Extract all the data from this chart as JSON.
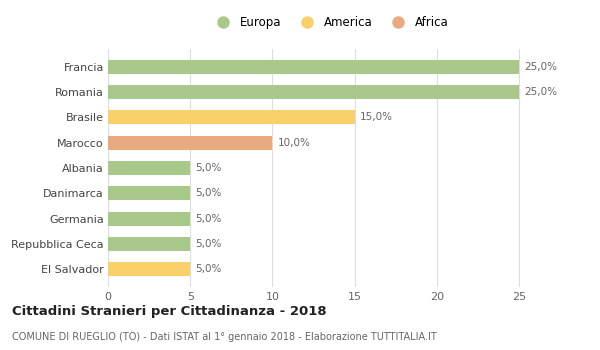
{
  "categories": [
    "El Salvador",
    "Repubblica Ceca",
    "Germania",
    "Danimarca",
    "Albania",
    "Marocco",
    "Brasile",
    "Romania",
    "Francia"
  ],
  "values": [
    5.0,
    5.0,
    5.0,
    5.0,
    5.0,
    10.0,
    15.0,
    25.0,
    25.0
  ],
  "colors": [
    "#f9d06a",
    "#a8c98a",
    "#a8c98a",
    "#a8c98a",
    "#a8c98a",
    "#e8aa80",
    "#f9d06a",
    "#a8c98a",
    "#a8c98a"
  ],
  "legend_labels": [
    "Europa",
    "America",
    "Africa"
  ],
  "legend_colors": [
    "#a8c98a",
    "#f9d06a",
    "#e8aa80"
  ],
  "title": "Cittadini Stranieri per Cittadinanza - 2018",
  "subtitle": "COMUNE DI RUEGLIO (TO) - Dati ISTAT al 1° gennaio 2018 - Elaborazione TUTTITALIA.IT",
  "xlim": [
    0,
    27
  ],
  "xticks": [
    0,
    5,
    10,
    15,
    20,
    25
  ],
  "bar_height": 0.55,
  "background_color": "#ffffff",
  "grid_color": "#dddddd"
}
